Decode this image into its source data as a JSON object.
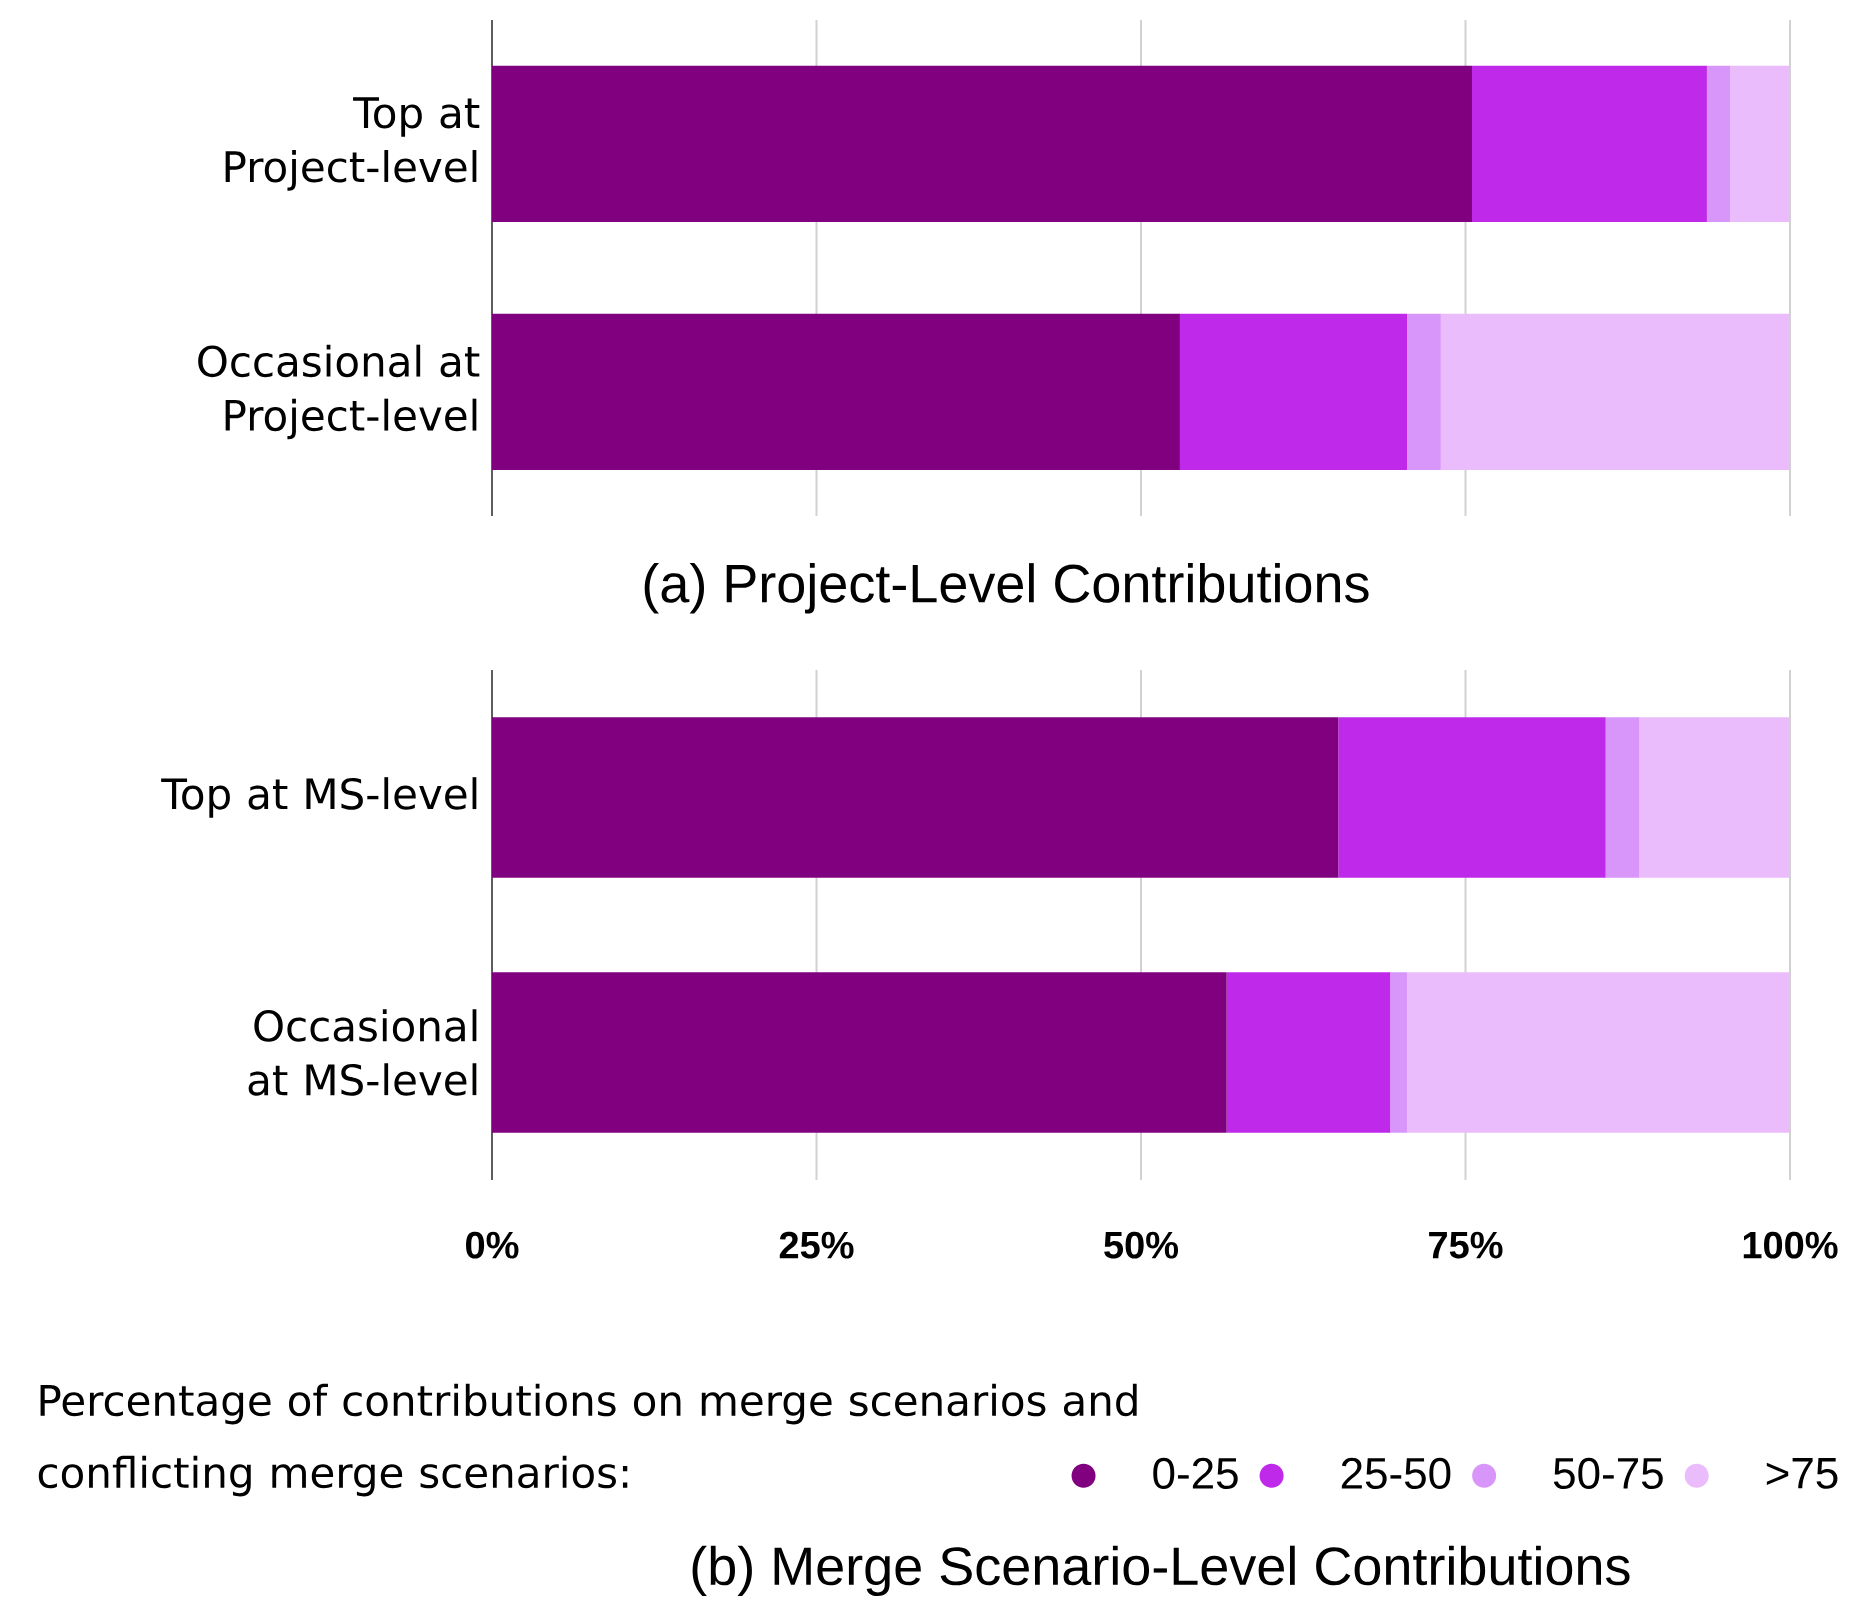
{
  "chart_data": [
    {
      "type": "bar",
      "orientation": "horizontal",
      "stacked": true,
      "title": "(a) Project-Level Contributions",
      "categories": [
        "Top at Project-level",
        "Occasional at Project-level"
      ],
      "series": [
        {
          "color": "#800080",
          "values": [
            75.5,
            53.0
          ]
        },
        {
          "color": "#bf2aea",
          "values": [
            18.1,
            17.5
          ]
        },
        {
          "color": "#d896fb",
          "values": [
            1.8,
            2.6
          ]
        },
        {
          "color": "#ebbcfc",
          "values": [
            4.6,
            26.9
          ]
        }
      ],
      "xlim": [
        0,
        100
      ],
      "xticks": [
        {
          "value": 0,
          "label": null
        },
        {
          "value": 25,
          "label": null
        },
        {
          "value": 50,
          "label": null
        },
        {
          "value": 75,
          "label": null
        },
        {
          "value": 100,
          "label": null
        }
      ],
      "grid": "x",
      "tick_labels": "y"
    },
    {
      "type": "bar",
      "orientation": "horizontal",
      "stacked": true,
      "title": "(b) Merge Scenario-Level Contributions",
      "legend_title": "Percentage of contributions on merge scenarios and conflicting merge scenarios:",
      "categories": [
        "Top at MS-level",
        "Occasional at MS-level"
      ],
      "series": [
        {
          "name": "0-25",
          "color": "#800080",
          "values": [
            65.2,
            56.6
          ]
        },
        {
          "name": "25-50",
          "color": "#bf2aea",
          "values": [
            20.6,
            12.6
          ]
        },
        {
          "name": "50-75",
          "color": "#d896fb",
          "values": [
            2.6,
            1.3
          ]
        },
        {
          "name": ">75",
          "color": "#ebbcfc",
          "values": [
            11.6,
            29.5
          ]
        }
      ],
      "xlim": [
        0,
        100
      ],
      "xticks": [
        {
          "value": 0,
          "label": "0%"
        },
        {
          "value": 25,
          "label": "25%"
        },
        {
          "value": 50,
          "label": "50%"
        },
        {
          "value": 75,
          "label": "75%"
        },
        {
          "value": 100,
          "label": "100%"
        }
      ],
      "grid": "x",
      "legend": "bottom"
    }
  ]
}
